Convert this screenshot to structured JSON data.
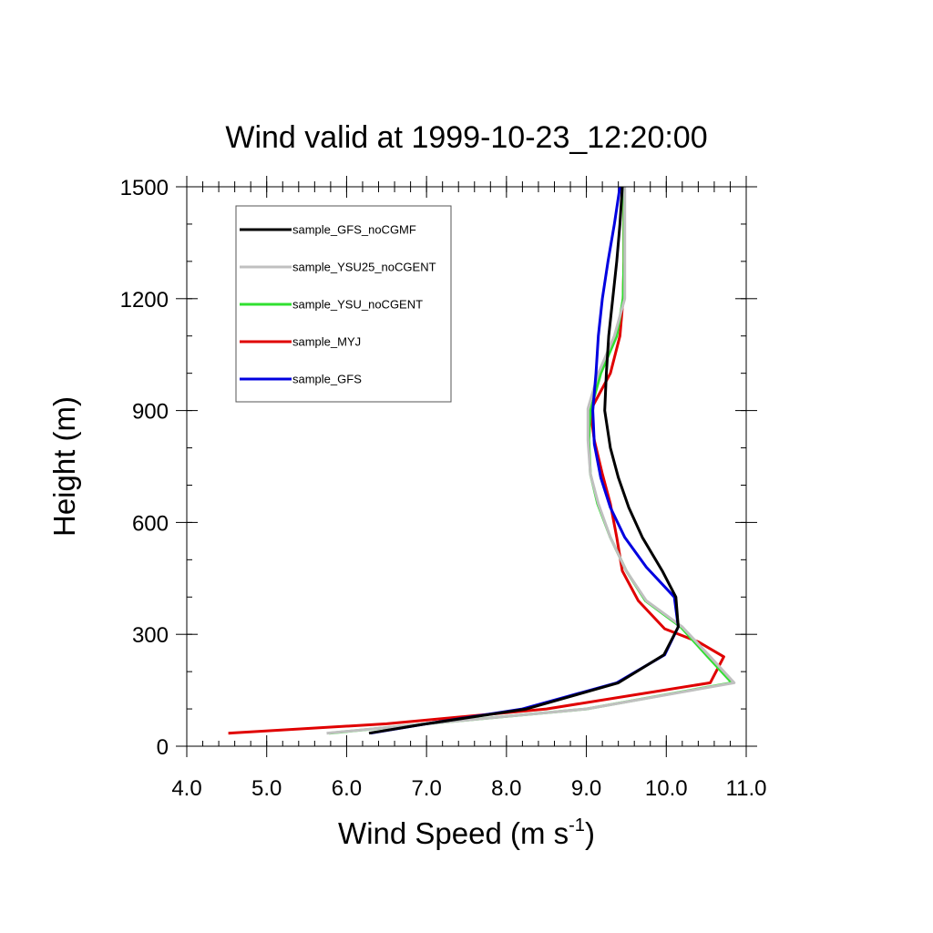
{
  "chart_data": {
    "type": "line",
    "title": "Wind valid at 1999-10-23_12:20:00",
    "xlabel": "Wind Speed (m s",
    "xlabel_superscript": "-1",
    "xlabel_close": ")",
    "ylabel": "Height (m)",
    "xlim": [
      4.0,
      11.0
    ],
    "ylim": [
      0,
      1500
    ],
    "x_ticks": [
      4.0,
      5.0,
      6.0,
      7.0,
      8.0,
      9.0,
      10.0,
      11.0
    ],
    "x_tick_labels": [
      "4.0",
      "5.0",
      "6.0",
      "7.0",
      "8.0",
      "9.0",
      "10.0",
      "11.0"
    ],
    "y_ticks": [
      0,
      300,
      600,
      900,
      1200,
      1500
    ],
    "y_tick_labels": [
      "0",
      "300",
      "600",
      "900",
      "1200",
      "1500"
    ],
    "legend_position": "top-left",
    "series": [
      {
        "name": "sample_GFS_noCGMF",
        "color": "#000000",
        "points": [
          [
            6.28,
            35
          ],
          [
            7.0,
            60
          ],
          [
            8.25,
            100
          ],
          [
            9.4,
            170
          ],
          [
            9.97,
            245
          ],
          [
            10.15,
            320
          ],
          [
            10.12,
            400
          ],
          [
            9.95,
            470
          ],
          [
            9.7,
            560
          ],
          [
            9.53,
            640
          ],
          [
            9.4,
            720
          ],
          [
            9.3,
            800
          ],
          [
            9.23,
            900
          ],
          [
            9.25,
            1000
          ],
          [
            9.28,
            1100
          ],
          [
            9.33,
            1200
          ],
          [
            9.38,
            1300
          ],
          [
            9.42,
            1400
          ],
          [
            9.45,
            1500
          ]
        ]
      },
      {
        "name": "sample_YSU25_noCGENT",
        "color": "#c0c0c0",
        "points": [
          [
            5.75,
            35
          ],
          [
            7.0,
            60
          ],
          [
            8.0,
            80
          ],
          [
            9.0,
            100
          ],
          [
            10.85,
            170
          ],
          [
            10.55,
            240
          ],
          [
            10.2,
            320
          ],
          [
            9.75,
            390
          ],
          [
            9.5,
            470
          ],
          [
            9.3,
            560
          ],
          [
            9.15,
            650
          ],
          [
            9.05,
            730
          ],
          [
            9.02,
            820
          ],
          [
            9.02,
            905
          ],
          [
            9.15,
            1000
          ],
          [
            9.35,
            1100
          ],
          [
            9.48,
            1200
          ],
          [
            9.48,
            1300
          ],
          [
            9.48,
            1400
          ],
          [
            9.48,
            1500
          ]
        ]
      },
      {
        "name": "sample_YSU_noCGENT",
        "color": "#30e030",
        "points": [
          [
            5.78,
            35
          ],
          [
            7.0,
            60
          ],
          [
            8.0,
            80
          ],
          [
            9.0,
            100
          ],
          [
            10.82,
            170
          ],
          [
            10.52,
            240
          ],
          [
            10.18,
            320
          ],
          [
            9.74,
            390
          ],
          [
            9.5,
            470
          ],
          [
            9.3,
            560
          ],
          [
            9.14,
            650
          ],
          [
            9.05,
            730
          ],
          [
            9.03,
            820
          ],
          [
            9.05,
            900
          ],
          [
            9.18,
            1000
          ],
          [
            9.38,
            1100
          ],
          [
            9.46,
            1200
          ],
          [
            9.47,
            1300
          ],
          [
            9.47,
            1400
          ],
          [
            9.47,
            1500
          ]
        ]
      },
      {
        "name": "sample_MYJ",
        "color": "#e00000",
        "points": [
          [
            4.52,
            35
          ],
          [
            6.5,
            60
          ],
          [
            8.5,
            100
          ],
          [
            10.55,
            170
          ],
          [
            10.72,
            240
          ],
          [
            10.4,
            280
          ],
          [
            9.98,
            315
          ],
          [
            9.65,
            390
          ],
          [
            9.45,
            470
          ],
          [
            9.38,
            560
          ],
          [
            9.3,
            650
          ],
          [
            9.2,
            730
          ],
          [
            9.1,
            820
          ],
          [
            9.05,
            900
          ],
          [
            9.3,
            1000
          ],
          [
            9.42,
            1100
          ],
          [
            9.46,
            1200
          ],
          [
            9.47,
            1300
          ],
          [
            9.47,
            1400
          ],
          [
            9.47,
            1500
          ]
        ]
      },
      {
        "name": "sample_GFS",
        "color": "#0000e0",
        "points": [
          [
            6.3,
            35
          ],
          [
            7.0,
            60
          ],
          [
            8.2,
            100
          ],
          [
            9.38,
            170
          ],
          [
            9.98,
            245
          ],
          [
            10.15,
            320
          ],
          [
            10.1,
            400
          ],
          [
            9.75,
            480
          ],
          [
            9.48,
            560
          ],
          [
            9.3,
            640
          ],
          [
            9.18,
            720
          ],
          [
            9.1,
            810
          ],
          [
            9.08,
            900
          ],
          [
            9.12,
            1000
          ],
          [
            9.15,
            1100
          ],
          [
            9.2,
            1200
          ],
          [
            9.27,
            1300
          ],
          [
            9.35,
            1400
          ],
          [
            9.42,
            1500
          ]
        ]
      }
    ]
  }
}
